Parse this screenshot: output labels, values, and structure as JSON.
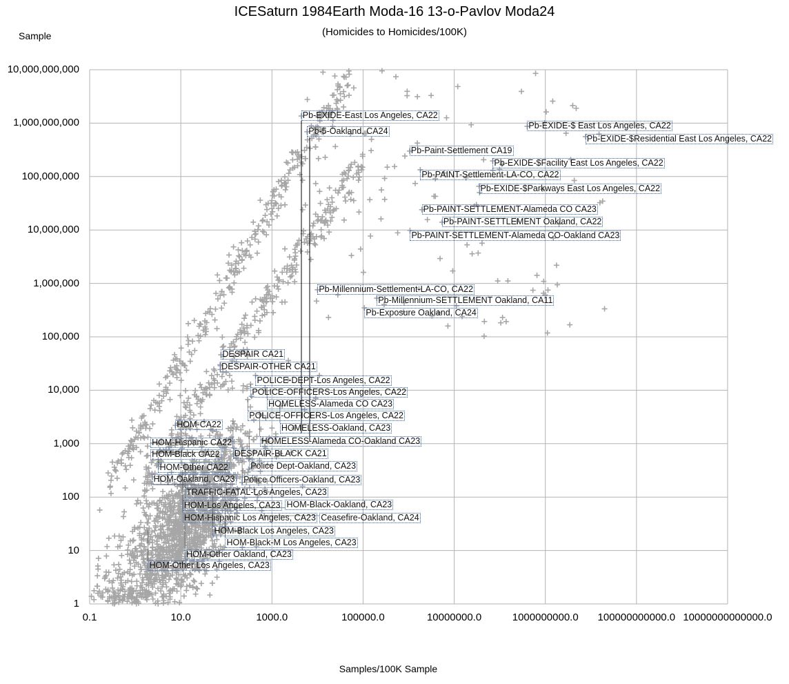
{
  "chart_data": {
    "type": "scatter",
    "title": "ICESaturn 1984Earth Moda-16 13-o-Pavlov Moda24",
    "subtitle": "(Homicides to Homicides/100K)",
    "xlabel": "Samples/100K Sample",
    "ylabel": "Sample",
    "xscale": "log",
    "yscale": "log",
    "xlim": [
      0.1,
      10000000000000
    ],
    "ylim": [
      1,
      10000000000
    ],
    "grid": true,
    "marker": "+",
    "marker_color": "#a6a6a6",
    "label_border_color": "#2a5db0",
    "x_tick_labels": [
      "0.1",
      "10.0",
      "1000.0",
      "100000.0",
      "10000000.0",
      "1000000000.0",
      "100000000000.0",
      "10000000000000.0"
    ],
    "x_tick_values": [
      0.1,
      10,
      1000,
      100000,
      10000000,
      1000000000,
      100000000000,
      10000000000000
    ],
    "y_tick_labels": [
      "1",
      "10",
      "100",
      "1,000",
      "10,000",
      "100,000",
      "1,000,000",
      "10,000,000",
      "100,000,000",
      "1,000,000,000",
      "10,000,000,000"
    ],
    "y_tick_values": [
      1,
      10,
      100,
      1000,
      10000,
      100000,
      1000000,
      10000000,
      100000000,
      1000000000,
      10000000000
    ],
    "background_series": {
      "name": "Samples",
      "approx_count": 2400
    },
    "labeled_points": [
      {
        "label": "Pb-EXIDE-East Los Angeles, CA22",
        "x": 4400,
        "y": 1360000000
      },
      {
        "label": "Pb-5-Oakland, CA24",
        "x": 5900,
        "y": 690000000
      },
      {
        "label": "Pb-EXIDE-$ East Los Angeles, CA22",
        "x": 400000000,
        "y": 870000000
      },
      {
        "label": "Pb-EXIDE-$Residential East Los Angeles, CA22",
        "x": 7600000000,
        "y": 560000000
      },
      {
        "label": "Pb-Paint-Settlement CA19",
        "x": 1050000,
        "y": 300000000
      },
      {
        "label": "Pb-EXIDE-$Facility East Los Angeles, CA22",
        "x": 70000000,
        "y": 196000000
      },
      {
        "label": "Pb-PAINT-Settlement-LA-CO, CA22",
        "x": 1800000,
        "y": 134000000
      },
      {
        "label": "Pb-EXIDE-$Parkways East Los Angeles, CA22",
        "x": 35000000,
        "y": 66000000
      },
      {
        "label": "Pb-PAINT-SETTLEMENT-Alameda CO CA23",
        "x": 1950000,
        "y": 24000000
      },
      {
        "label": "Pb-PAINT-SETTLEMENT Oakland, CA22",
        "x": 5400000,
        "y": 14000000
      },
      {
        "label": "Pb-PAINT-SETTLEMENT-Alameda CO-Oakland CA23",
        "x": 1070000,
        "y": 9800000
      },
      {
        "label": "Pb-Millennium-Settlement-LA-CO, CA22",
        "x": 10000,
        "y": 760000
      },
      {
        "label": "Pb-Millennium-SETTLEMENT Oakland, CA11",
        "x": 200000,
        "y": 530000
      },
      {
        "label": "Pb-Exposure Oakland, CA24",
        "x": 107000,
        "y": 350000
      },
      {
        "label": "DESPAIR CA21",
        "x": 76,
        "y": 46000
      },
      {
        "label": "DESPAIR-OTHER CA21",
        "x": 73,
        "y": 30000
      },
      {
        "label": "POLICE-DEPT-Los Angeles, CA22",
        "x": 436,
        "y": 19000
      },
      {
        "label": "POLICE-OFFICERS-Los Angeles, CA22",
        "x": 340,
        "y": 13000
      },
      {
        "label": "HOMELESS-Alameda CO CA23",
        "x": 780,
        "y": 9800
      },
      {
        "label": "POLICE-OFFICERS-Los Angeles, CA22",
        "x": 295,
        "y": 6700
      },
      {
        "label": "HOMELESS-Oakland, CA23",
        "x": 1500,
        "y": 5000
      },
      {
        "label": "HOMELESS-Alameda CO-Oakland CA23",
        "x": 540,
        "y": 3600
      },
      {
        "label": "DESPAIR-BLACK CA21",
        "x": 140,
        "y": 2650
      },
      {
        "label": "HOM-CA22",
        "x": 7.6,
        "y": 2200
      },
      {
        "label": "Police Dept-Oakland, CA23",
        "x": 316,
        "y": 1380
      },
      {
        "label": "HOM-Hispanic CA22",
        "x": 8.7,
        "y": 1030
      },
      {
        "label": "Police Officers-Oakland, CA23",
        "x": 222,
        "y": 860
      },
      {
        "label": "HOM-Black CA22",
        "x": 35,
        "y": 690
      },
      {
        "label": "HOM-Other CA22",
        "x": 3.2,
        "y": 500
      },
      {
        "label": "TRAFFIC-FATAL-Los Angeles, CA23",
        "x": 12.3,
        "y": 400
      },
      {
        "label": "HOM-Los Angeles, CA23",
        "x": 11,
        "y": 285
      },
      {
        "label": "HOM-Hispanic Los Angeles, CA23",
        "x": 11,
        "y": 212
      },
      {
        "label": "HOM-Oakland, CA23",
        "x": 38,
        "y": 166
      },
      {
        "label": "HOM-Black  Los Angeles, CA23",
        "x": 50,
        "y": 120
      },
      {
        "label": "HOM-Black-M  Los Angeles, CA23",
        "x": 94,
        "y": 81
      },
      {
        "label": "HOM-Black-Oakland, CA23",
        "x": 120,
        "y": 63
      },
      {
        "label": "Ceasefire-Oakland, CA24",
        "x": 680,
        "y": 45
      },
      {
        "label": "HOM-Other Oakland, CA23",
        "x": 12.3,
        "y": 31
      },
      {
        "label": "HOM-Other Los Angeles, CA23",
        "x": 1.9,
        "y": 24
      }
    ]
  }
}
